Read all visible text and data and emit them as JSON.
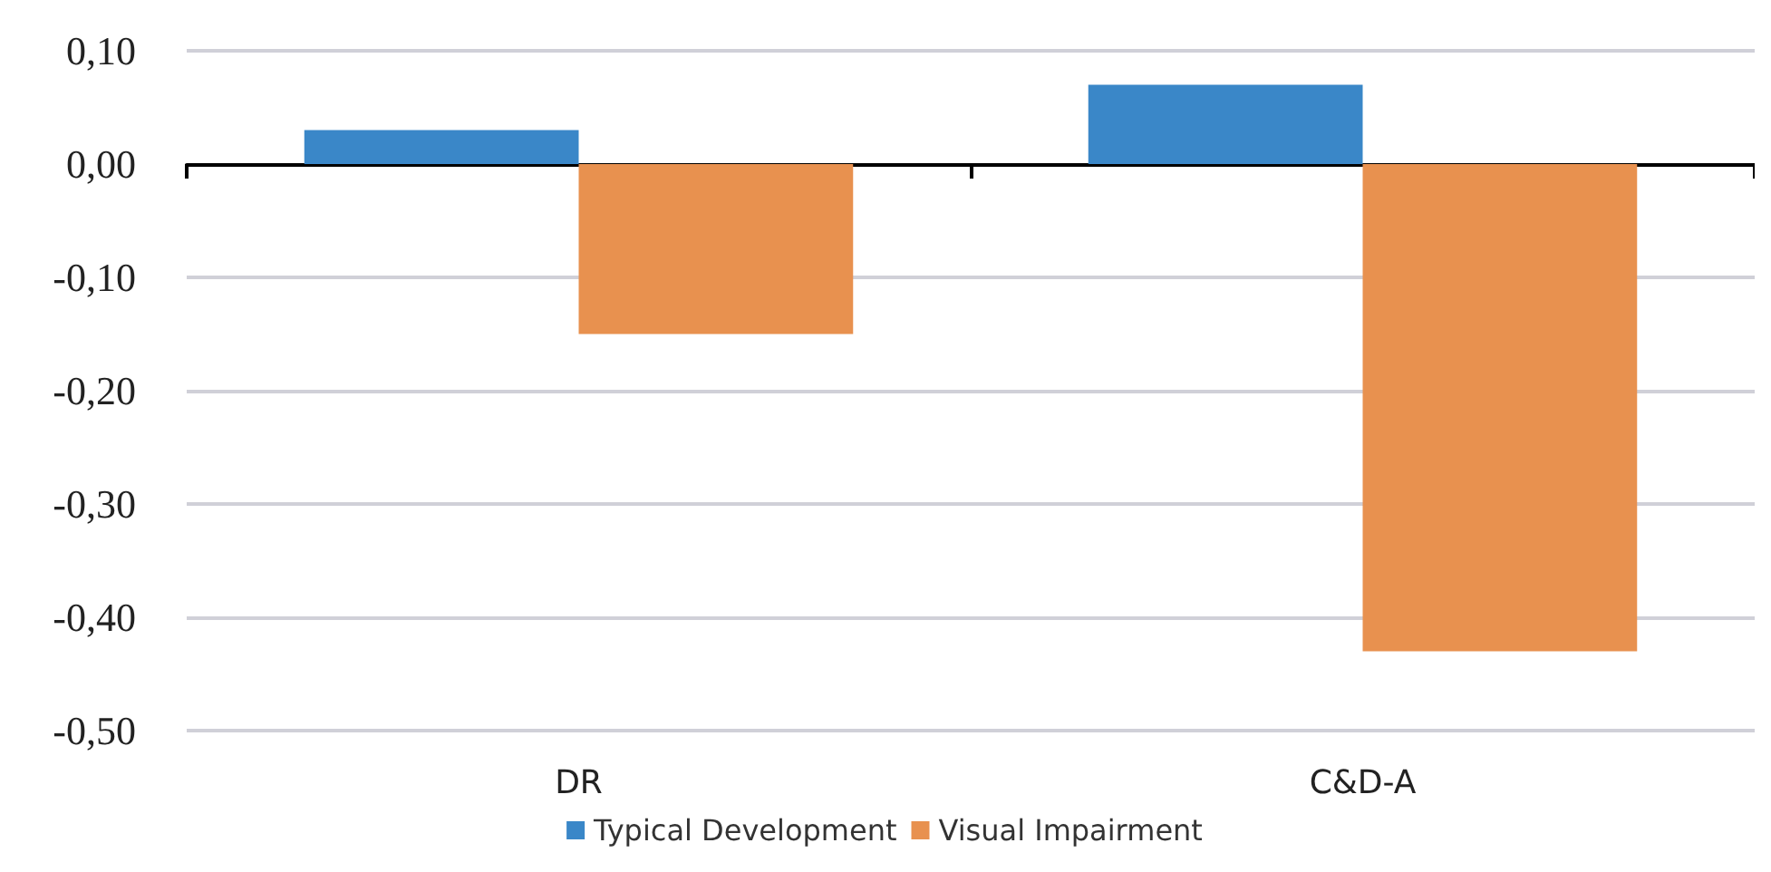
{
  "chart_data": {
    "type": "bar",
    "categories": [
      "DR",
      "C&D-A"
    ],
    "series": [
      {
        "name": "Typical Development",
        "color": "#3a87c8",
        "values": [
          0.03,
          0.07
        ]
      },
      {
        "name": "Visual Impairment",
        "color": "#e8914f",
        "values": [
          -0.15,
          -0.43
        ]
      }
    ],
    "ylim": [
      -0.5,
      0.1
    ],
    "yticks": [
      {
        "value": -0.5,
        "label": "-0,50"
      },
      {
        "value": -0.4,
        "label": "-0,40"
      },
      {
        "value": -0.3,
        "label": "-0,30"
      },
      {
        "value": -0.2,
        "label": "-0,20"
      },
      {
        "value": -0.1,
        "label": "-0,10"
      },
      {
        "value": 0,
        "label": "0,00"
      },
      {
        "value": 0.1,
        "label": "0,10"
      }
    ],
    "grid": "y",
    "legend": "bottom"
  }
}
